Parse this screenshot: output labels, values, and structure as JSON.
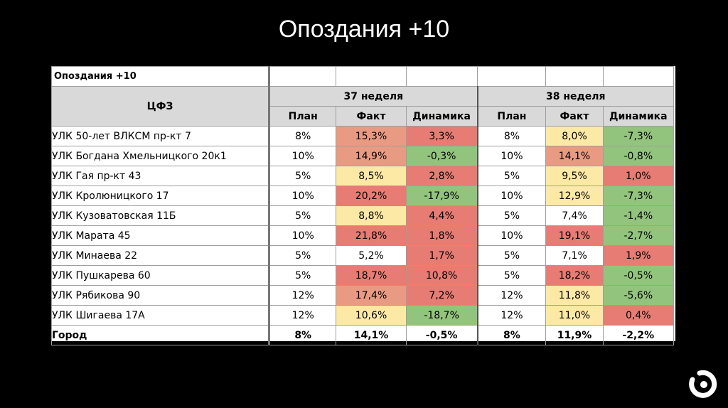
{
  "slide": {
    "title": "Опоздания +10"
  },
  "sheet": {
    "title": "Опоздания +10",
    "column_header": "ЦФЗ",
    "weeks": [
      "37 неделя",
      "38 неделя"
    ],
    "subheaders": [
      "План",
      "Факт",
      "Динамика",
      "План",
      "Факт",
      "Динамика"
    ]
  },
  "colors": {
    "red": "#e67c73",
    "salmon": "#e99a82",
    "yellow": "#fde9a6",
    "green": "#93c47d",
    "header_gray": "#d9d9d9"
  },
  "rows": [
    {
      "name": "УЛК 50-лет ВЛКСМ пр-кт 7",
      "w37_plan": "8%",
      "w37_fact": "15,3%",
      "w37_dyn": "3,3%",
      "w38_plan": "8%",
      "w38_fact": "8,0%",
      "w38_dyn": "-7,3%"
    },
    {
      "name": "УЛК Богдана Хмельницкого 20к1",
      "w37_plan": "10%",
      "w37_fact": "14,9%",
      "w37_dyn": "-0,3%",
      "w38_plan": "10%",
      "w38_fact": "14,1%",
      "w38_dyn": "-0,8%"
    },
    {
      "name": "УЛК Гая пр-кт 43",
      "w37_plan": "5%",
      "w37_fact": "8,5%",
      "w37_dyn": "2,8%",
      "w38_plan": "5%",
      "w38_fact": "9,5%",
      "w38_dyn": "1,0%"
    },
    {
      "name": "УЛК Кролюницкого 17",
      "w37_plan": "10%",
      "w37_fact": "20,2%",
      "w37_dyn": "-17,9%",
      "w38_plan": "10%",
      "w38_fact": "12,9%",
      "w38_dyn": "-7,3%"
    },
    {
      "name": "УЛК Кузоватовская 11Б",
      "w37_plan": "5%",
      "w37_fact": "8,8%",
      "w37_dyn": "4,4%",
      "w38_plan": "5%",
      "w38_fact": "7,4%",
      "w38_dyn": "-1,4%"
    },
    {
      "name": "УЛК Марата 45",
      "w37_plan": "10%",
      "w37_fact": "21,8%",
      "w37_dyn": "1,8%",
      "w38_plan": "10%",
      "w38_fact": "19,1%",
      "w38_dyn": "-2,7%"
    },
    {
      "name": "УЛК Минаева 22",
      "w37_plan": "5%",
      "w37_fact": "5,2%",
      "w37_dyn": "1,7%",
      "w38_plan": "5%",
      "w38_fact": "7,1%",
      "w38_dyn": "1,9%"
    },
    {
      "name": "УЛК Пушкарева 60",
      "w37_plan": "5%",
      "w37_fact": "18,7%",
      "w37_dyn": "10,8%",
      "w38_plan": "5%",
      "w38_fact": "18,2%",
      "w38_dyn": "-0,5%"
    },
    {
      "name": "УЛК Рябикова 90",
      "w37_plan": "12%",
      "w37_fact": "17,4%",
      "w37_dyn": "7,2%",
      "w38_plan": "12%",
      "w38_fact": "11,8%",
      "w38_dyn": "-5,6%"
    },
    {
      "name": "УЛК Шигаева 17А",
      "w37_plan": "12%",
      "w37_fact": "10,6%",
      "w37_dyn": "-18,7%",
      "w38_plan": "12%",
      "w38_fact": "11,0%",
      "w38_dyn": "0,4%"
    }
  ],
  "total": {
    "name": "Город",
    "w37_plan": "8%",
    "w37_fact": "14,1%",
    "w37_dyn": "-0,5%",
    "w38_plan": "8%",
    "w38_fact": "11,9%",
    "w38_dyn": "-2,2%"
  },
  "logo": {
    "icon": "brand-logo-icon"
  }
}
